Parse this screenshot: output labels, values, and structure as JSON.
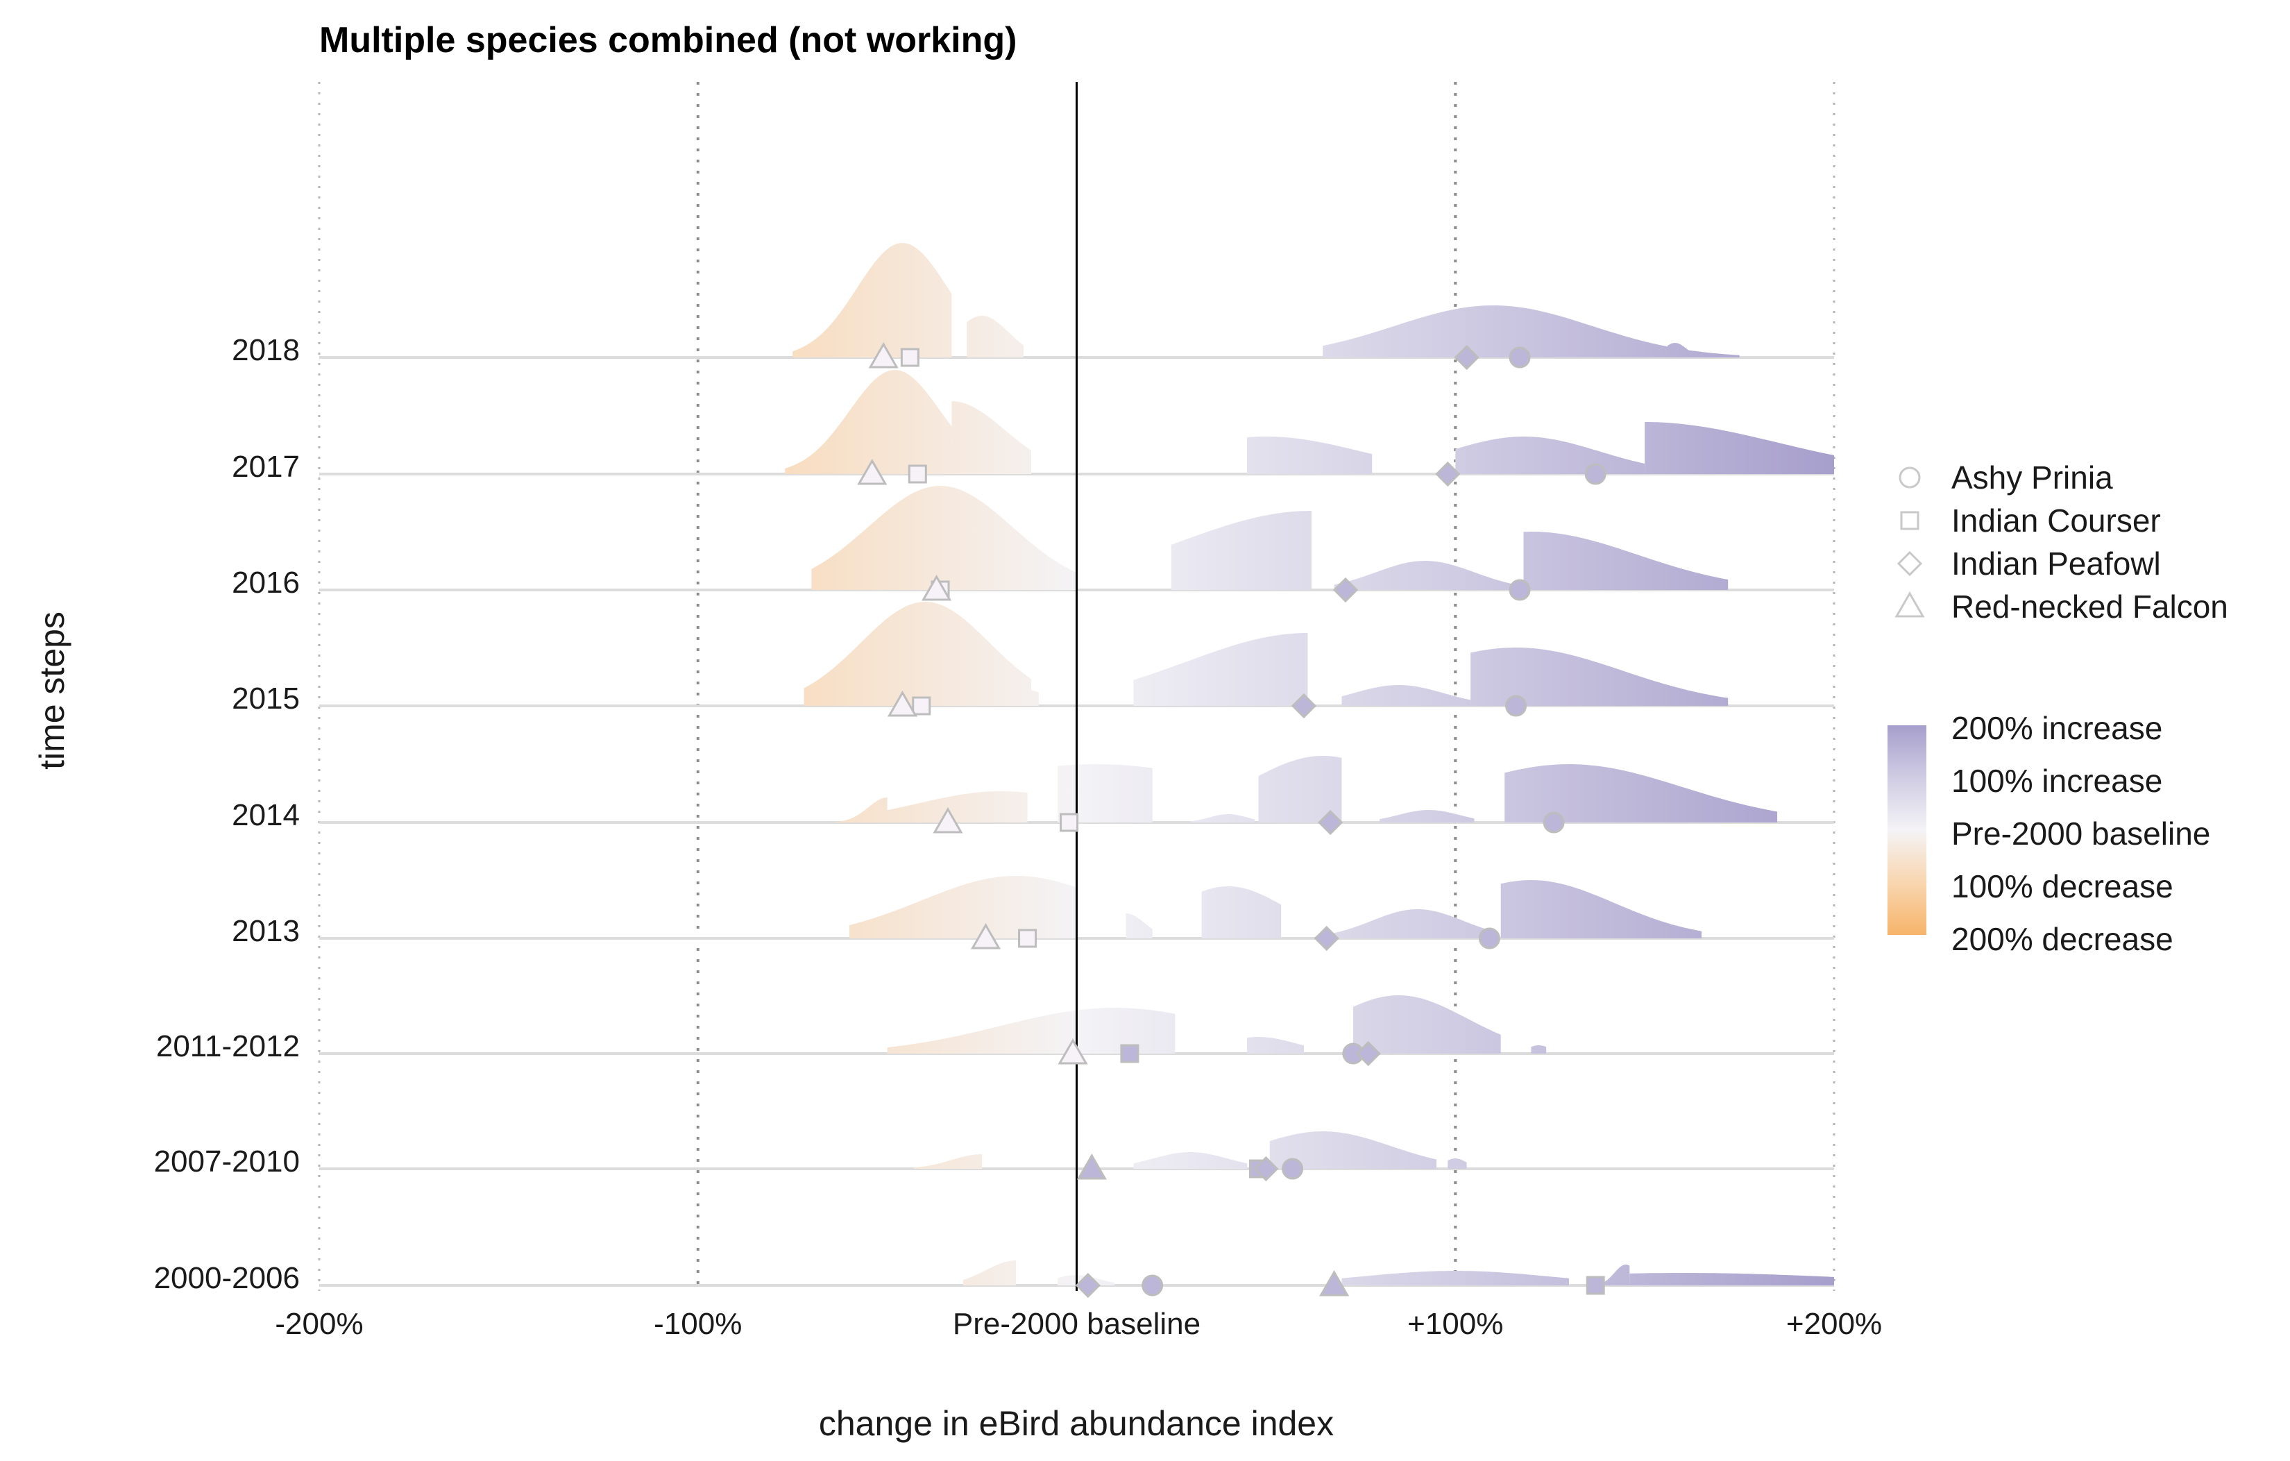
{
  "chart_data": {
    "type": "ridgeline",
    "title": "Multiple species combined (not working)",
    "xlabel": "change in eBird abundance index",
    "ylabel": "time steps",
    "xlim": [
      -200,
      200
    ],
    "x_ticks": [
      {
        "value": -200,
        "label": "-200%"
      },
      {
        "value": -100,
        "label": "-100%"
      },
      {
        "value": 0,
        "label": "Pre-2000 baseline"
      },
      {
        "value": 100,
        "label": "+100%"
      },
      {
        "value": 200,
        "label": "+200%"
      }
    ],
    "grid": "vertical dotted",
    "baseline_line": 0,
    "time_steps": [
      "2000-2006",
      "2007-2010",
      "2011-2012",
      "2013",
      "2014",
      "2015",
      "2016",
      "2017",
      "2018"
    ],
    "colors": {
      "increase": "#a79fcc",
      "baseline": "#f4f3f6",
      "decrease": "#f6b46a",
      "grid": "#aaaaaa",
      "marker_stroke": "#bdbdbd"
    },
    "species": [
      {
        "name": "Ashy Prinia",
        "shape": "circle",
        "values": [
          20,
          57,
          73,
          109,
          126,
          116,
          117,
          137,
          117
        ]
      },
      {
        "name": "Indian Courser",
        "shape": "square",
        "values": [
          137,
          48,
          14,
          -13,
          -2,
          -41,
          -36,
          -42,
          -44
        ]
      },
      {
        "name": "Indian Peafowl",
        "shape": "diamond",
        "values": [
          3,
          50,
          77,
          66,
          67,
          60,
          71,
          98,
          103
        ]
      },
      {
        "name": "Red-necked Falcon",
        "shape": "triangle",
        "values": [
          68,
          4,
          -1,
          -24,
          -34,
          -46,
          -37,
          -54,
          -51
        ]
      }
    ],
    "ridges": {
      "2018": [
        {
          "center": -46,
          "spread": 12,
          "height": 0.55,
          "lo": -75,
          "hi": -33
        },
        {
          "center": -25,
          "spread": 7,
          "height": 0.2,
          "lo": -29,
          "hi": -14
        },
        {
          "center": 110,
          "spread": 26,
          "height": 0.25,
          "lo": 65,
          "hi": 175
        },
        {
          "center": 158,
          "spread": 3,
          "height": 0.07,
          "lo": 156,
          "hi": 163
        }
      ],
      "2017": [
        {
          "center": -48,
          "spread": 12,
          "height": 0.5,
          "lo": -77,
          "hi": -33
        },
        {
          "center": -33,
          "spread": 14,
          "height": 0.35,
          "lo": -33,
          "hi": -12
        },
        {
          "center": 50,
          "spread": 25,
          "height": 0.18,
          "lo": 45,
          "hi": 78
        },
        {
          "center": 118,
          "spread": 20,
          "height": 0.18,
          "lo": 100,
          "hi": 150
        },
        {
          "center": 150,
          "spread": 35,
          "height": 0.25,
          "lo": 150,
          "hi": 200
        }
      ],
      "2016": [
        {
          "center": -36,
          "spread": 19,
          "height": 0.5,
          "lo": -70,
          "hi": 0
        },
        {
          "center": 62,
          "spread": 35,
          "height": 0.38,
          "lo": 25,
          "hi": 62
        },
        {
          "center": 92,
          "spread": 13,
          "height": 0.14,
          "lo": 68,
          "hi": 117
        },
        {
          "center": 120,
          "spread": 28,
          "height": 0.28,
          "lo": 118,
          "hi": 172
        }
      ],
      "2015": [
        {
          "center": -40,
          "spread": 17,
          "height": 0.5,
          "lo": -72,
          "hi": -12
        },
        {
          "center": -21,
          "spread": 12,
          "height": 0.1,
          "lo": -22,
          "hi": -10
        },
        {
          "center": 61,
          "spread": 32,
          "height": 0.35,
          "lo": 15,
          "hi": 61
        },
        {
          "center": 85,
          "spread": 12,
          "height": 0.1,
          "lo": 70,
          "hi": 104
        },
        {
          "center": 116,
          "spread": 28,
          "height": 0.28,
          "lo": 104,
          "hi": 172
        }
      ],
      "2014": [
        {
          "center": -50,
          "spread": 5,
          "height": 0.12,
          "lo": -64,
          "hi": -50
        },
        {
          "center": -20,
          "spread": 22,
          "height": 0.15,
          "lo": -55,
          "hi": -13
        },
        {
          "center": 5,
          "spread": 40,
          "height": 0.28,
          "lo": -5,
          "hi": 20
        },
        {
          "center": 40,
          "spread": 5,
          "height": 0.04,
          "lo": 30,
          "hi": 47
        },
        {
          "center": 65,
          "spread": 20,
          "height": 0.32,
          "lo": 48,
          "hi": 70
        },
        {
          "center": 93,
          "spread": 8,
          "height": 0.06,
          "lo": 80,
          "hi": 105
        },
        {
          "center": 130,
          "spread": 30,
          "height": 0.28,
          "lo": 113,
          "hi": 185
        }
      ],
      "2013": [
        {
          "center": -16,
          "spread": 25,
          "height": 0.3,
          "lo": -60,
          "hi": 0
        },
        {
          "center": 13,
          "spread": 5,
          "height": 0.12,
          "lo": 13,
          "hi": 20
        },
        {
          "center": 40,
          "spread": 15,
          "height": 0.25,
          "lo": 33,
          "hi": 54
        },
        {
          "center": 90,
          "spread": 12,
          "height": 0.14,
          "lo": 63,
          "hi": 108
        },
        {
          "center": 120,
          "spread": 22,
          "height": 0.28,
          "lo": 112,
          "hi": 165
        }
      ],
      "2011-2012": [
        {
          "center": 10,
          "spread": 30,
          "height": 0.22,
          "lo": -50,
          "hi": 26
        },
        {
          "center": 48,
          "spread": 10,
          "height": 0.08,
          "lo": 45,
          "hi": 60
        },
        {
          "center": 85,
          "spread": 18,
          "height": 0.28,
          "lo": 73,
          "hi": 112
        },
        {
          "center": 122,
          "spread": 3,
          "height": 0.04,
          "lo": 120,
          "hi": 124
        }
      ],
      "2007-2010": [
        {
          "center": -25,
          "spread": 8,
          "height": 0.07,
          "lo": -43,
          "hi": -25
        },
        {
          "center": 30,
          "spread": 10,
          "height": 0.08,
          "lo": 15,
          "hi": 45
        },
        {
          "center": 65,
          "spread": 18,
          "height": 0.18,
          "lo": 51,
          "hi": 95
        },
        {
          "center": 100,
          "spread": 3,
          "height": 0.05,
          "lo": 98,
          "hi": 103
        }
      ],
      "2000-2006": [
        {
          "center": -16,
          "spread": 8,
          "height": 0.12,
          "lo": -30,
          "hi": -16
        },
        {
          "center": 0,
          "spread": 6,
          "height": 0.05,
          "lo": -5,
          "hi": 10
        },
        {
          "center": 100,
          "spread": 25,
          "height": 0.07,
          "lo": 70,
          "hi": 130
        },
        {
          "center": 145,
          "spread": 3,
          "height": 0.1,
          "lo": 136,
          "hi": 146
        },
        {
          "center": 160,
          "spread": 45,
          "height": 0.06,
          "lo": 146,
          "hi": 200
        }
      ]
    },
    "legend_shapes": {
      "placement": "right",
      "entries": [
        {
          "label": "Ashy Prinia",
          "shape": "circle"
        },
        {
          "label": "Indian Courser",
          "shape": "square"
        },
        {
          "label": "Indian Peafowl",
          "shape": "diamond"
        },
        {
          "label": "Red-necked Falcon",
          "shape": "triangle"
        }
      ]
    },
    "legend_colors": {
      "placement": "right",
      "entries": [
        "200% increase",
        "100% increase",
        "Pre-2000 baseline",
        "100% decrease",
        "200% decrease"
      ]
    }
  }
}
